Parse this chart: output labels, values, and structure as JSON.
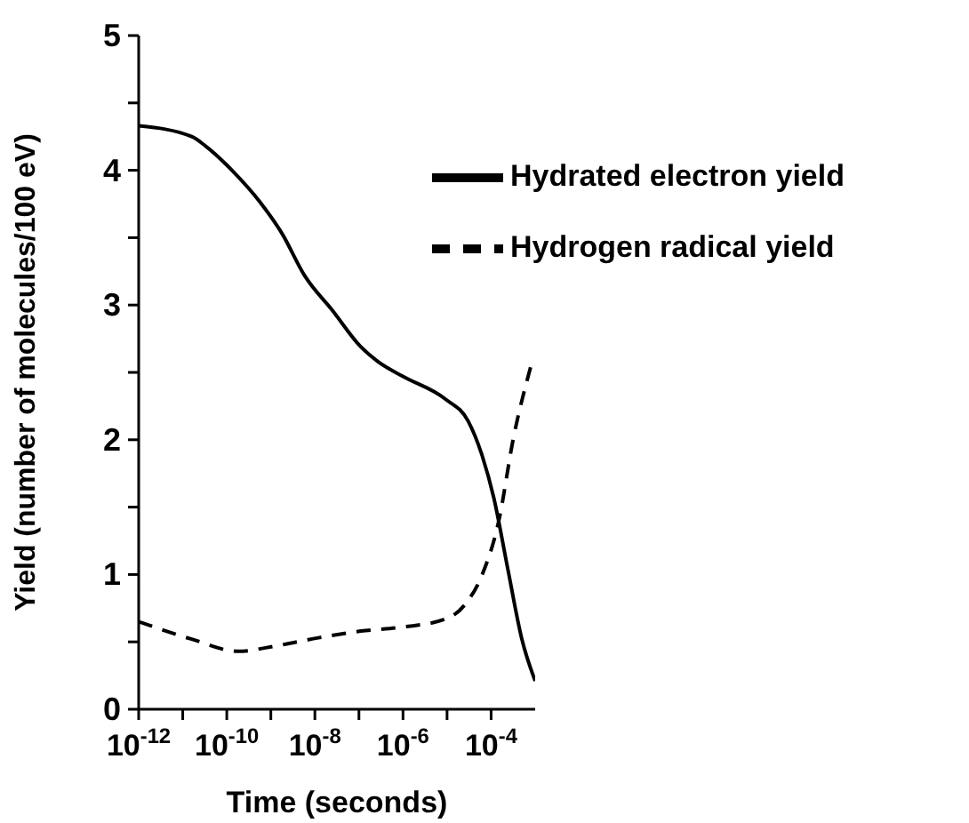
{
  "chart_data": {
    "type": "line",
    "xlabel": "Time (seconds)",
    "ylabel": "Yield (number of molecules/100 eV)",
    "log": "x",
    "legend": "top right",
    "marker": "none",
    "xlim": [
      1e-12,
      0.001
    ],
    "xticks": [
      {
        "value": 1e-12,
        "label": "10$^{-12}$"
      },
      {
        "value": 1e-11,
        "label": null
      },
      {
        "value": 1e-10,
        "label": "10$^{-10}$"
      },
      {
        "value": 1e-09,
        "label": null
      },
      {
        "value": 1e-08,
        "label": "10$^{-8}$"
      },
      {
        "value": 1e-07,
        "label": null
      },
      {
        "value": 1e-06,
        "label": "10$^{-6}$"
      },
      {
        "value": 1e-05,
        "label": null
      },
      {
        "value": 0.0001,
        "label": "10$^{-4}$"
      }
    ],
    "ylim": [
      0,
      5
    ],
    "yticks": [
      0,
      {
        "value": 0.5,
        "label": null
      },
      1,
      {
        "value": 1.5,
        "label": null
      },
      2,
      {
        "value": 2.5,
        "label": null
      },
      3,
      {
        "value": 3.5,
        "label": null
      },
      4,
      {
        "value": 4.5,
        "label": null
      },
      5
    ],
    "series": [
      {
        "name": "Hydrogen radical yield",
        "color": "#000000",
        "line_style": "dashed",
        "x": [
          1e-12,
          1.6e-11,
          1.8e-10,
          1.3e-09,
          1.2e-08,
          1.1e-07,
          1e-06,
          9.3e-06,
          2.6e-05,
          6.3e-05,
          0.00015,
          0.00032,
          0.00079
        ],
        "values": [
          0.65,
          0.52,
          0.43,
          0.47,
          0.53,
          0.58,
          0.61,
          0.67,
          0.78,
          1.0,
          1.4,
          2.01,
          2.54
        ]
      },
      {
        "name": "Hydrated electron yield",
        "color": "#000000",
        "line_style": "solid",
        "x": [
          1e-12,
          1.6e-11,
          3.3e-11,
          1.4e-10,
          5.5e-10,
          1.8e-09,
          5.8e-09,
          2.5e-08,
          1.1e-07,
          2.7e-07,
          1e-06,
          9.3e-06,
          3e-05,
          6.3e-05,
          0.000115,
          0.00024,
          0.0005,
          0.001
        ],
        "values": [
          4.33,
          4.25,
          4.18,
          3.99,
          3.77,
          3.53,
          3.22,
          2.96,
          2.69,
          2.58,
          2.47,
          2.3,
          2.14,
          1.88,
          1.57,
          1.04,
          0.52,
          0.21
        ]
      }
    ]
  }
}
